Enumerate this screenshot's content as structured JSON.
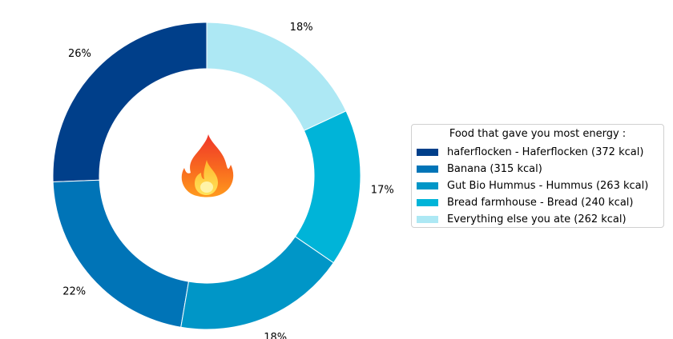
{
  "chart_data": {
    "type": "pie",
    "donut": true,
    "start_angle_deg": 90,
    "direction": "counterclockwise",
    "legend_title": "Food that gave you most energy :",
    "legend_position": "right",
    "center_icon": "fire-icon",
    "slices": [
      {
        "label": "haferflocken - Haferflocken (372 kcal)",
        "value": 372,
        "pct_label": "26%",
        "color": "#003f8a"
      },
      {
        "label": "Banana (315 kcal)",
        "value": 315,
        "pct_label": "22%",
        "color": "#0074b7"
      },
      {
        "label": "Gut Bio Hummus - Hummus (263 kcal)",
        "value": 263,
        "pct_label": "18%",
        "color": "#0096c7"
      },
      {
        "label": "Bread farmhouse - Bread (240 kcal)",
        "value": 240,
        "pct_label": "17%",
        "color": "#00b4d8"
      },
      {
        "label": "Everything else you ate (262 kcal)",
        "value": 262,
        "pct_label": "18%",
        "color": "#ade8f4"
      }
    ]
  }
}
